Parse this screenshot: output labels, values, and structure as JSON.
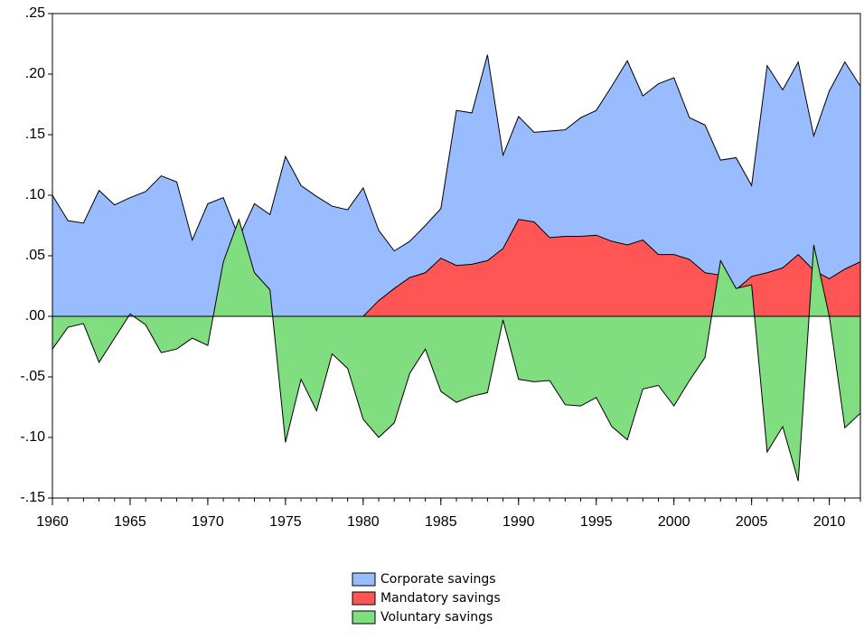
{
  "chart_data": {
    "type": "area",
    "x": [
      1960,
      1961,
      1962,
      1963,
      1964,
      1965,
      1966,
      1967,
      1968,
      1969,
      1970,
      1971,
      1972,
      1973,
      1974,
      1975,
      1976,
      1977,
      1978,
      1979,
      1980,
      1981,
      1982,
      1983,
      1984,
      1985,
      1986,
      1987,
      1988,
      1989,
      1990,
      1991,
      1992,
      1993,
      1994,
      1995,
      1996,
      1997,
      1998,
      1999,
      2000,
      2001,
      2002,
      2003,
      2004,
      2005,
      2006,
      2007,
      2008,
      2009,
      2010,
      2011,
      2012
    ],
    "series": [
      {
        "name": "Corporate savings",
        "color": "#99bbff",
        "values": [
          0.1,
          0.079,
          0.077,
          0.104,
          0.092,
          0.098,
          0.103,
          0.116,
          0.111,
          0.063,
          0.093,
          0.098,
          0.065,
          0.093,
          0.084,
          0.132,
          0.108,
          0.099,
          0.091,
          0.088,
          0.106,
          0.071,
          0.054,
          0.062,
          0.075,
          0.089,
          0.17,
          0.168,
          0.216,
          0.133,
          0.165,
          0.152,
          0.153,
          0.154,
          0.164,
          0.17,
          0.19,
          0.211,
          0.182,
          0.192,
          0.197,
          0.164,
          0.158,
          0.129,
          0.131,
          0.108,
          0.207,
          0.187,
          0.21,
          0.149,
          0.186,
          0.21,
          0.19
        ]
      },
      {
        "name": "Mandatory savings",
        "color": "#ff5555",
        "values": [
          0,
          0,
          0,
          0,
          0,
          0,
          0,
          0,
          0,
          0,
          0,
          0,
          0,
          0,
          0,
          0,
          0,
          0,
          0,
          0,
          0,
          0.013,
          0.023,
          0.032,
          0.036,
          0.048,
          0.042,
          0.043,
          0.046,
          0.056,
          0.08,
          0.078,
          0.065,
          0.066,
          0.066,
          0.067,
          0.062,
          0.059,
          0.063,
          0.051,
          0.051,
          0.047,
          0.036,
          0.034,
          0.022,
          0.033,
          0.036,
          0.04,
          0.051,
          0.038,
          0.031,
          0.039,
          0.045
        ]
      },
      {
        "name": "Voluntary savings",
        "color": "#80dd80",
        "values": [
          -0.027,
          -0.009,
          -0.006,
          -0.038,
          -0.018,
          0.002,
          -0.007,
          -0.03,
          -0.027,
          -0.018,
          -0.024,
          0.045,
          0.08,
          0.036,
          0.022,
          -0.104,
          -0.052,
          -0.078,
          -0.031,
          -0.043,
          -0.085,
          -0.1,
          -0.088,
          -0.047,
          -0.027,
          -0.062,
          -0.071,
          -0.066,
          -0.063,
          -0.003,
          -0.052,
          -0.054,
          -0.053,
          -0.073,
          -0.074,
          -0.067,
          -0.091,
          -0.102,
          -0.06,
          -0.057,
          -0.074,
          -0.053,
          -0.034,
          0.046,
          0.023,
          0.026,
          -0.112,
          -0.091,
          -0.136,
          0.059,
          0.0,
          -0.092,
          -0.08
        ]
      }
    ],
    "xlim": [
      1960,
      2012
    ],
    "xticks": [
      1960,
      1965,
      1970,
      1975,
      1980,
      1985,
      1990,
      1995,
      2000,
      2005,
      2010
    ],
    "ylim": [
      -0.15,
      0.25
    ],
    "yticks": [
      {
        "value": -0.15,
        "label": "-.15"
      },
      {
        "value": -0.1,
        "label": "-.10"
      },
      {
        "value": -0.05,
        "label": "-.05"
      },
      {
        "value": 0,
        "label": ".00"
      },
      {
        "value": 0.05,
        "label": ".05"
      },
      {
        "value": 0.1,
        "label": ".10"
      },
      {
        "value": 0.15,
        "label": ".15"
      },
      {
        "value": 0.2,
        "label": ".20"
      },
      {
        "value": 0.25,
        "label": ".25"
      }
    ]
  }
}
